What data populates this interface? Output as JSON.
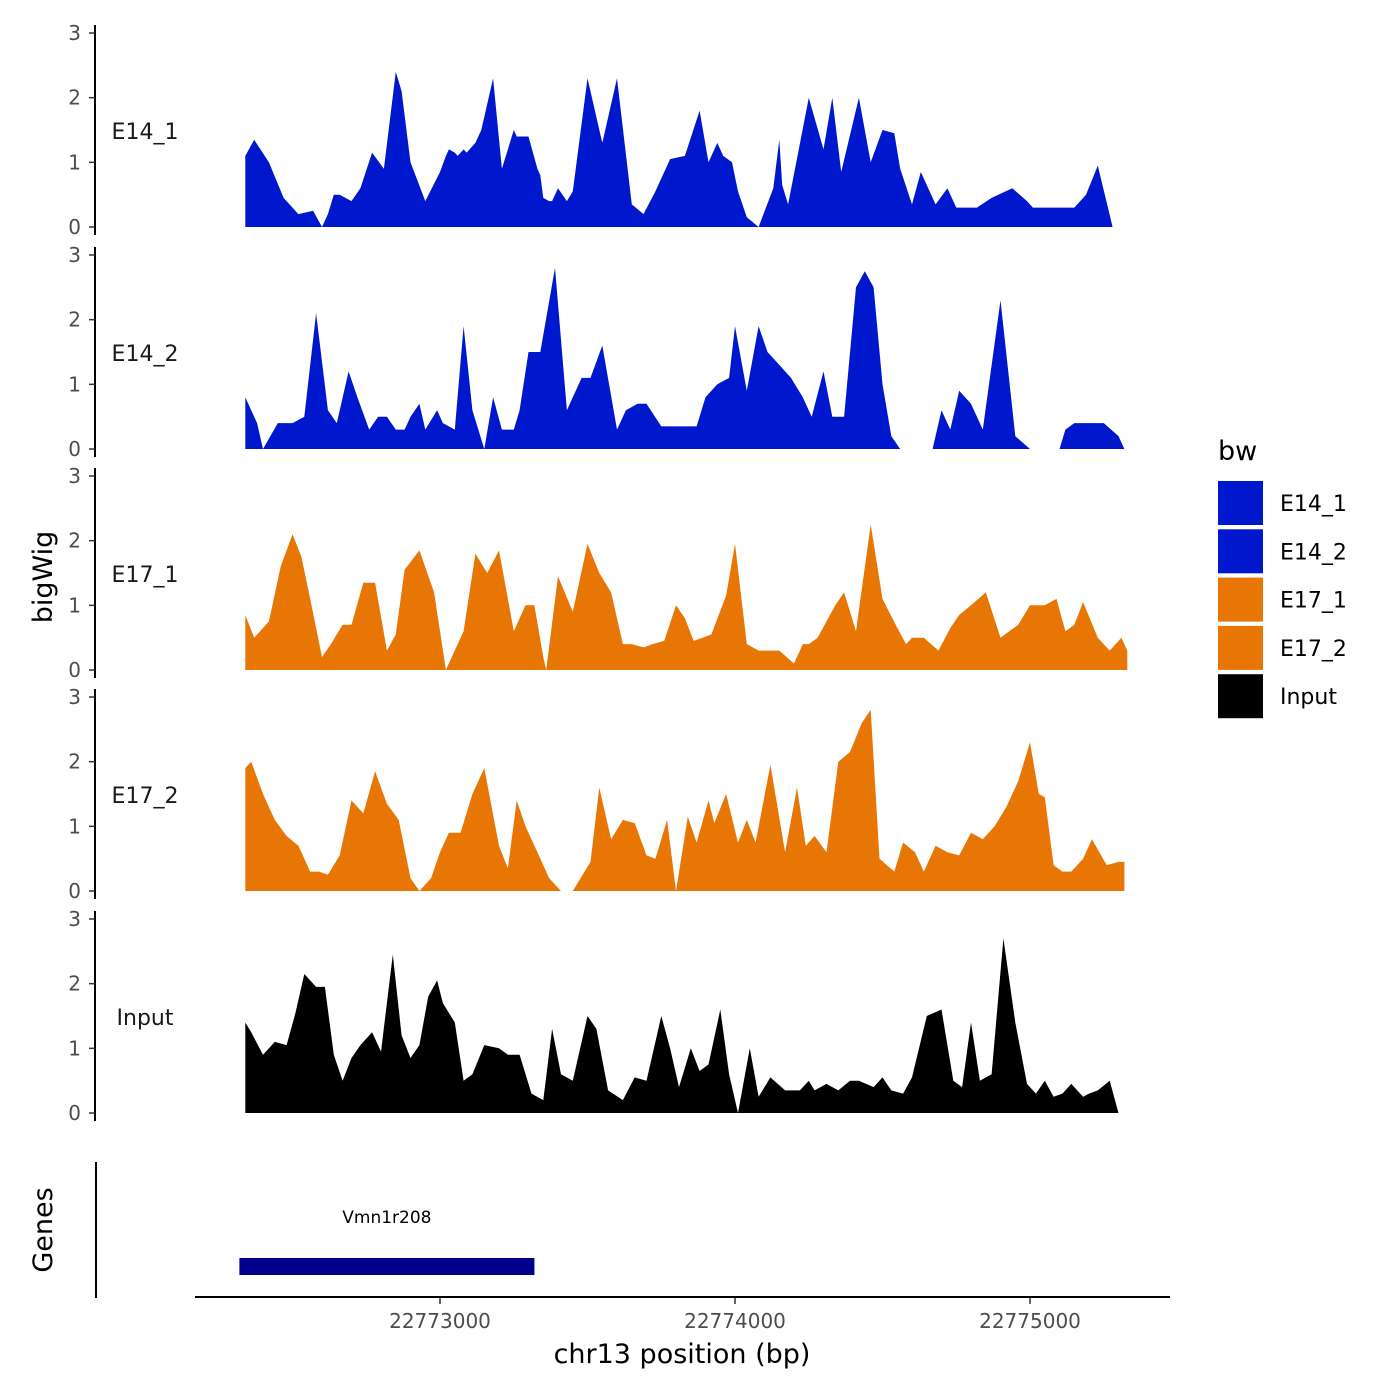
{
  "chart_data": {
    "type": "area",
    "title": "",
    "ylabel": "bigWig",
    "xlabel": "chr13 position (bp)",
    "xlim": [
      22772170,
      22775500
    ],
    "xticks": [
      22773000,
      22774000,
      22775000
    ],
    "ylim": [
      0,
      3
    ],
    "yticks": [
      0,
      1,
      2,
      3
    ],
    "grid": false,
    "legend_title": "bw",
    "legend_position": "right",
    "legend": [
      {
        "label": "E14_1",
        "color": "#0018CD"
      },
      {
        "label": "E14_2",
        "color": "#0018CD"
      },
      {
        "label": "E17_1",
        "color": "#E87605"
      },
      {
        "label": "E17_2",
        "color": "#E87605"
      },
      {
        "label": "Input",
        "color": "#000000"
      }
    ],
    "series": [
      {
        "name": "E14_1",
        "color": "#0018CD",
        "x": [
          22772340,
          22772370,
          22772420,
          22772470,
          22772520,
          22772570,
          22772600,
          22772620,
          22772640,
          22772660,
          22772700,
          22772730,
          22772770,
          22772810,
          22772850,
          22772870,
          22772900,
          22772950,
          22773000,
          22773020,
          22773030,
          22773050,
          22773060,
          22773080,
          22773090,
          22773120,
          22773140,
          22773180,
          22773210,
          22773250,
          22773260,
          22773300,
          22773330,
          22773340,
          22773350,
          22773370,
          22773380,
          22773400,
          22773430,
          22773450,
          22773500,
          22773550,
          22773600,
          22773650,
          22773690,
          22773730,
          22773780,
          22773830,
          22773880,
          22773910,
          22773940,
          22773960,
          22773990,
          22774010,
          22774040,
          22774080,
          22774130,
          22774150,
          22774160,
          22774180,
          22774250,
          22774300,
          22774330,
          22774360,
          22774420,
          22774460,
          22774500,
          22774540,
          22774560,
          22774600,
          22774630,
          22774680,
          22774720,
          22774750,
          22774780,
          22774820,
          22774870,
          22774940,
          22774990,
          22775010,
          22775060,
          22775110,
          22775150,
          22775190,
          22775230,
          22775280,
          22775320,
          22775330
        ],
        "values": [
          1.1,
          1.35,
          1.0,
          0.45,
          0.2,
          0.25,
          0.0,
          0.2,
          0.5,
          0.5,
          0.4,
          0.6,
          1.15,
          0.9,
          2.4,
          2.1,
          1.0,
          0.4,
          0.85,
          1.1,
          1.2,
          1.15,
          1.1,
          1.2,
          1.15,
          1.3,
          1.5,
          2.3,
          0.9,
          1.5,
          1.4,
          1.4,
          0.9,
          0.8,
          0.45,
          0.4,
          0.4,
          0.6,
          0.4,
          0.55,
          2.3,
          1.3,
          2.3,
          0.35,
          0.2,
          0.55,
          1.05,
          1.1,
          1.8,
          1.0,
          1.3,
          1.1,
          1.0,
          0.55,
          0.15,
          0.0,
          0.6,
          1.35,
          0.65,
          0.35,
          2.0,
          1.2,
          2.0,
          0.85,
          2.0,
          1.0,
          1.5,
          1.45,
          0.9,
          0.35,
          0.85,
          0.35,
          0.6,
          0.3,
          0.3,
          0.3,
          0.45,
          0.6,
          0.4,
          0.3,
          0.3,
          0.3,
          0.3,
          0.5,
          0.95,
          0.0,
          0.0,
          0.0
        ]
      },
      {
        "name": "E14_2",
        "color": "#0018CD",
        "x": [
          22772340,
          22772380,
          22772400,
          22772450,
          22772500,
          22772540,
          22772580,
          22772620,
          22772650,
          22772690,
          22772720,
          22772760,
          22772790,
          22772820,
          22772850,
          22772880,
          22772900,
          22772930,
          22772950,
          22772990,
          22773010,
          22773050,
          22773080,
          22773110,
          22773150,
          22773180,
          22773210,
          22773250,
          22773270,
          22773300,
          22773340,
          22773390,
          22773430,
          22773480,
          22773510,
          22773550,
          22773600,
          22773630,
          22773670,
          22773700,
          22773750,
          22773800,
          22773840,
          22773870,
          22773900,
          22773940,
          22773980,
          22774000,
          22774040,
          22774080,
          22774110,
          22774150,
          22774190,
          22774230,
          22774260,
          22774300,
          22774330,
          22774370,
          22774410,
          22774440,
          22774470,
          22774500,
          22774530,
          22774560,
          22774600,
          22774640,
          22774670,
          22774700,
          22774730,
          22774760,
          22774800,
          22774840,
          22774900,
          22774950,
          22775000,
          22775010,
          22775040,
          22775080,
          22775100,
          22775120,
          22775150,
          22775180,
          22775250,
          22775300,
          22775320
        ],
        "values": [
          0.8,
          0.4,
          0.0,
          0.4,
          0.4,
          0.5,
          2.1,
          0.6,
          0.4,
          1.2,
          0.8,
          0.3,
          0.5,
          0.5,
          0.3,
          0.3,
          0.5,
          0.7,
          0.3,
          0.6,
          0.4,
          0.3,
          1.9,
          0.6,
          0.0,
          0.8,
          0.3,
          0.3,
          0.6,
          1.5,
          1.5,
          2.8,
          0.6,
          1.1,
          1.1,
          1.6,
          0.3,
          0.6,
          0.7,
          0.7,
          0.35,
          0.35,
          0.35,
          0.35,
          0.8,
          1.0,
          1.1,
          1.9,
          0.9,
          1.9,
          1.5,
          1.3,
          1.1,
          0.8,
          0.5,
          1.2,
          0.5,
          0.5,
          2.5,
          2.75,
          2.5,
          1.0,
          0.2,
          0.0,
          0.0,
          0.0,
          0.0,
          0.6,
          0.3,
          0.9,
          0.7,
          0.3,
          2.3,
          0.2,
          0.0,
          0.0,
          0.0,
          0.0,
          0.0,
          0.3,
          0.4,
          0.4,
          0.4,
          0.2,
          0.0
        ]
      },
      {
        "name": "E17_1",
        "color": "#E87605",
        "x": [
          22772340,
          22772370,
          22772420,
          22772460,
          22772500,
          22772530,
          22772560,
          22772600,
          22772630,
          22772670,
          22772700,
          22772740,
          22772780,
          22772820,
          22772850,
          22772880,
          22772930,
          22772980,
          22773000,
          22773020,
          22773080,
          22773120,
          22773160,
          22773200,
          22773250,
          22773290,
          22773320,
          22773350,
          22773360,
          22773400,
          22773450,
          22773500,
          22773540,
          22773580,
          22773620,
          22773650,
          22773690,
          22773720,
          22773760,
          22773800,
          22773830,
          22773860,
          22773890,
          22773920,
          22773970,
          22774000,
          22774040,
          22774080,
          22774110,
          22774150,
          22774200,
          22774230,
          22774250,
          22774280,
          22774340,
          22774370,
          22774410,
          22774460,
          22774500,
          22774550,
          22774580,
          22774600,
          22774640,
          22774690,
          22774730,
          22774760,
          22774800,
          22774850,
          22774900,
          22774960,
          22775000,
          22775050,
          22775090,
          22775120,
          22775150,
          22775180,
          22775230,
          22775270,
          22775310,
          22775330
        ],
        "values": [
          0.85,
          0.5,
          0.75,
          1.6,
          2.1,
          1.75,
          1.1,
          0.2,
          0.4,
          0.7,
          0.7,
          1.35,
          1.35,
          0.3,
          0.55,
          1.55,
          1.85,
          1.2,
          0.6,
          0.0,
          0.6,
          1.8,
          1.5,
          1.85,
          0.6,
          1.0,
          1.0,
          0.2,
          0.0,
          1.45,
          0.9,
          1.95,
          1.5,
          1.2,
          0.4,
          0.4,
          0.35,
          0.4,
          0.45,
          1.0,
          0.8,
          0.45,
          0.5,
          0.55,
          1.15,
          1.95,
          0.4,
          0.3,
          0.3,
          0.3,
          0.1,
          0.4,
          0.4,
          0.5,
          1.0,
          1.2,
          0.6,
          2.25,
          1.1,
          0.65,
          0.4,
          0.5,
          0.5,
          0.3,
          0.65,
          0.85,
          1.0,
          1.2,
          0.5,
          0.7,
          1.0,
          1.0,
          1.1,
          0.6,
          0.7,
          1.05,
          0.5,
          0.3,
          0.5,
          0.3
        ]
      },
      {
        "name": "E17_2",
        "color": "#E87605",
        "x": [
          22772340,
          22772360,
          22772400,
          22772440,
          22772480,
          22772520,
          22772560,
          22772590,
          22772620,
          22772660,
          22772700,
          22772740,
          22772780,
          22772820,
          22772860,
          22772900,
          22772930,
          22772970,
          22773000,
          22773030,
          22773070,
          22773110,
          22773150,
          22773200,
          22773230,
          22773260,
          22773290,
          22773330,
          22773370,
          22773410,
          22773450,
          22773510,
          22773540,
          22773580,
          22773620,
          22773660,
          22773700,
          22773730,
          22773770,
          22773800,
          22773840,
          22773870,
          22773910,
          22773930,
          22773970,
          22774010,
          22774040,
          22774070,
          22774120,
          22774170,
          22774210,
          22774240,
          22774270,
          22774310,
          22774350,
          22774390,
          22774430,
          22774460,
          22774490,
          22774540,
          22774570,
          22774610,
          22774640,
          22774680,
          22774720,
          22774760,
          22774800,
          22774840,
          22774880,
          22774920,
          22774960,
          22775000,
          22775030,
          22775050,
          22775080,
          22775110,
          22775140,
          22775180,
          22775210,
          22775260,
          22775300,
          22775320
        ],
        "values": [
          1.9,
          2.0,
          1.5,
          1.1,
          0.85,
          0.7,
          0.3,
          0.3,
          0.25,
          0.55,
          1.4,
          1.2,
          1.85,
          1.35,
          1.1,
          0.2,
          0.0,
          0.2,
          0.6,
          0.9,
          0.9,
          1.5,
          1.9,
          0.7,
          0.35,
          1.4,
          1.0,
          0.6,
          0.2,
          0.0,
          0.0,
          0.45,
          1.6,
          0.8,
          1.1,
          1.05,
          0.55,
          0.5,
          1.1,
          0.0,
          1.15,
          0.75,
          1.4,
          1.05,
          1.5,
          0.75,
          1.1,
          0.75,
          1.95,
          0.6,
          1.6,
          0.7,
          0.85,
          0.6,
          2.0,
          2.15,
          2.6,
          2.8,
          0.5,
          0.3,
          0.75,
          0.6,
          0.3,
          0.7,
          0.6,
          0.55,
          0.9,
          0.8,
          1.0,
          1.3,
          1.7,
          2.3,
          1.5,
          1.45,
          0.4,
          0.3,
          0.3,
          0.5,
          0.8,
          0.4,
          0.45,
          0.45
        ]
      },
      {
        "name": "Input",
        "color": "#000000",
        "x": [
          22772340,
          22772360,
          22772400,
          22772440,
          22772480,
          22772510,
          22772540,
          22772580,
          22772610,
          22772640,
          22772670,
          22772700,
          22772730,
          22772770,
          22772800,
          22772840,
          22772870,
          22772900,
          22772930,
          22772960,
          22772990,
          22773010,
          22773050,
          22773080,
          22773110,
          22773150,
          22773200,
          22773230,
          22773270,
          22773310,
          22773350,
          22773380,
          22773410,
          22773450,
          22773500,
          22773530,
          22773570,
          22773620,
          22773660,
          22773700,
          22773750,
          22773780,
          22773810,
          22773850,
          22773880,
          22773910,
          22773950,
          22773980,
          22774010,
          22774050,
          22774080,
          22774120,
          22774170,
          22774220,
          22774250,
          22774270,
          22774310,
          22774350,
          22774390,
          22774420,
          22774470,
          22774500,
          22774530,
          22774570,
          22774600,
          22774650,
          22774700,
          22774740,
          22774770,
          22774800,
          22774830,
          22774870,
          22774910,
          22774950,
          22774990,
          22775020,
          22775050,
          22775080,
          22775110,
          22775140,
          22775180,
          22775200,
          22775230,
          22775270,
          22775300
        ],
        "values": [
          1.4,
          1.25,
          0.9,
          1.1,
          1.05,
          1.55,
          2.15,
          1.95,
          1.95,
          0.9,
          0.5,
          0.85,
          1.05,
          1.25,
          0.95,
          2.45,
          1.2,
          0.85,
          1.05,
          1.8,
          2.05,
          1.7,
          1.4,
          0.5,
          0.6,
          1.05,
          1.0,
          0.9,
          0.9,
          0.3,
          0.2,
          1.3,
          0.6,
          0.5,
          1.5,
          1.3,
          0.35,
          0.2,
          0.55,
          0.5,
          1.5,
          1.0,
          0.4,
          1.0,
          0.65,
          0.75,
          1.6,
          0.6,
          0.0,
          1.0,
          0.25,
          0.55,
          0.35,
          0.35,
          0.5,
          0.35,
          0.45,
          0.35,
          0.5,
          0.5,
          0.4,
          0.55,
          0.35,
          0.3,
          0.55,
          1.5,
          1.6,
          0.5,
          0.4,
          1.4,
          0.5,
          0.6,
          2.7,
          1.4,
          0.45,
          0.3,
          0.5,
          0.25,
          0.3,
          0.45,
          0.25,
          0.3,
          0.35,
          0.5,
          0.0
        ]
      }
    ],
    "genes": [
      {
        "name": "Vmn1r208",
        "start": 22772320,
        "end": 22773320,
        "color": "#00008B"
      }
    ],
    "genes_panel_label": "Genes"
  }
}
